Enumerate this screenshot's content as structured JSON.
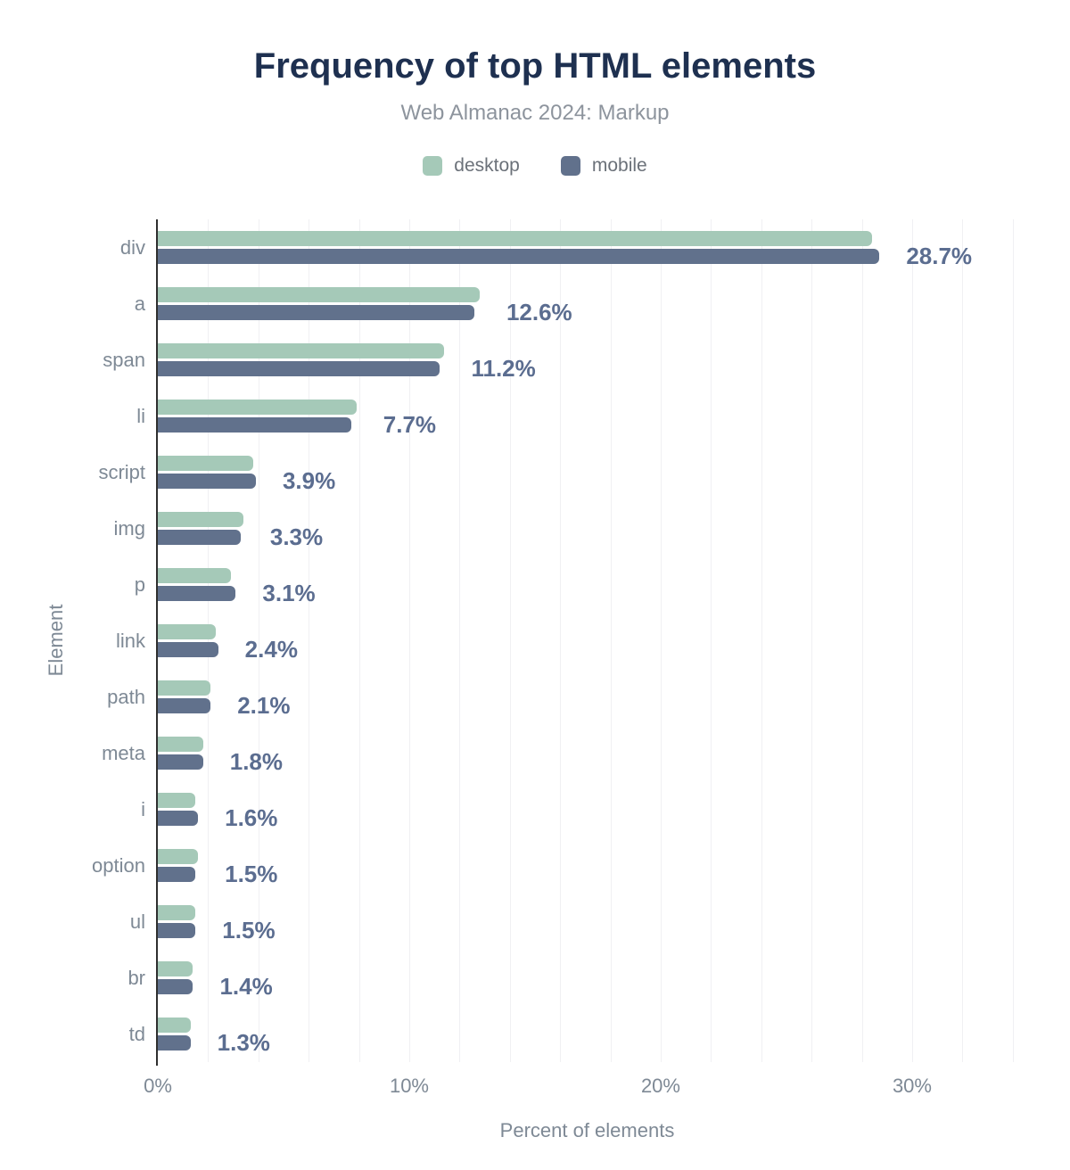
{
  "chart_data": {
    "type": "bar",
    "orientation": "horizontal",
    "title": "Frequency of top HTML elements",
    "subtitle": "Web Almanac 2024: Markup",
    "xlabel": "Percent of elements",
    "ylabel": "Element",
    "categories": [
      "div",
      "a",
      "span",
      "li",
      "script",
      "img",
      "p",
      "link",
      "path",
      "meta",
      "i",
      "option",
      "ul",
      "br",
      "td"
    ],
    "series": [
      {
        "name": "desktop",
        "color": "#a5c9b8",
        "values": [
          28.4,
          12.8,
          11.4,
          7.9,
          3.8,
          3.4,
          2.9,
          2.3,
          2.1,
          1.8,
          1.5,
          1.6,
          1.5,
          1.4,
          1.3
        ]
      },
      {
        "name": "mobile",
        "color": "#61718c",
        "values": [
          28.7,
          12.6,
          11.2,
          7.7,
          3.9,
          3.3,
          3.1,
          2.4,
          2.1,
          1.8,
          1.6,
          1.5,
          1.5,
          1.4,
          1.3
        ]
      }
    ],
    "value_labels": [
      "28.7%",
      "12.6%",
      "11.2%",
      "7.7%",
      "3.9%",
      "3.3%",
      "3.1%",
      "2.4%",
      "2.1%",
      "1.8%",
      "1.6%",
      "1.5%",
      "1.5%",
      "1.4%",
      "1.3%"
    ],
    "x_ticks": [
      {
        "value": 0,
        "label": "0%"
      },
      {
        "value": 10,
        "label": "10%"
      },
      {
        "value": 20,
        "label": "20%"
      },
      {
        "value": 30,
        "label": "30%"
      }
    ],
    "xlim": [
      0,
      34.15
    ],
    "gridline_step": 2,
    "grid": "vertical",
    "legend_position": "top"
  },
  "colors": {
    "title": "#1e3050",
    "subtitle": "#8d949d",
    "legend_label": "#6b7179",
    "category_label": "#7e8995",
    "tick_label": "#7e8995",
    "axis_title": "#7e8995",
    "value_label": "#5b6d90",
    "gridline": "#f0f0f3",
    "axis_line": "#2f2f2f"
  }
}
